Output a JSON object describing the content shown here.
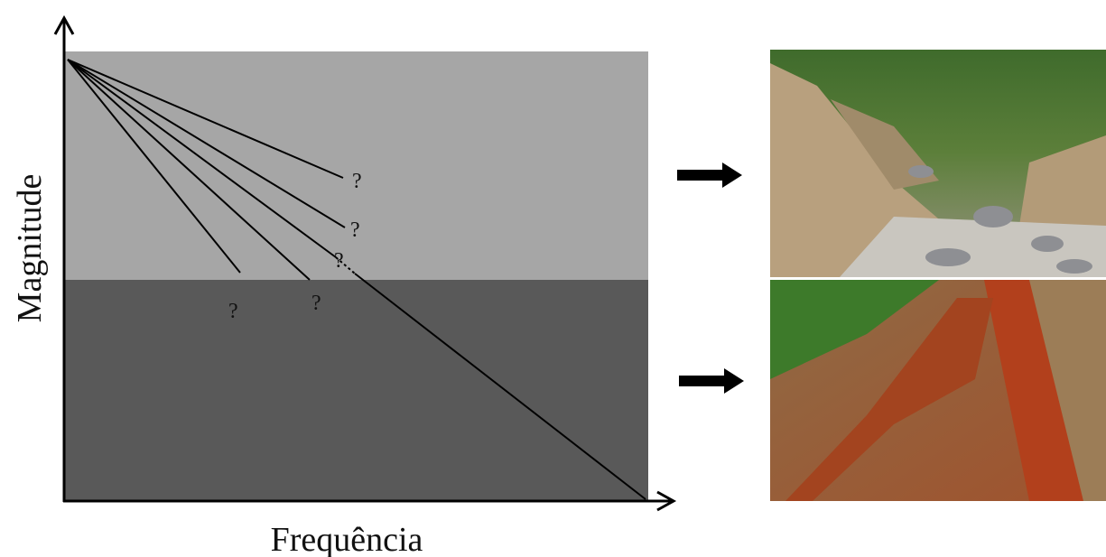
{
  "axes": {
    "y_label": "Magnitude",
    "x_label": "Frequência"
  },
  "question_marks": [
    "?",
    "?",
    "?",
    "?",
    "?"
  ]
}
